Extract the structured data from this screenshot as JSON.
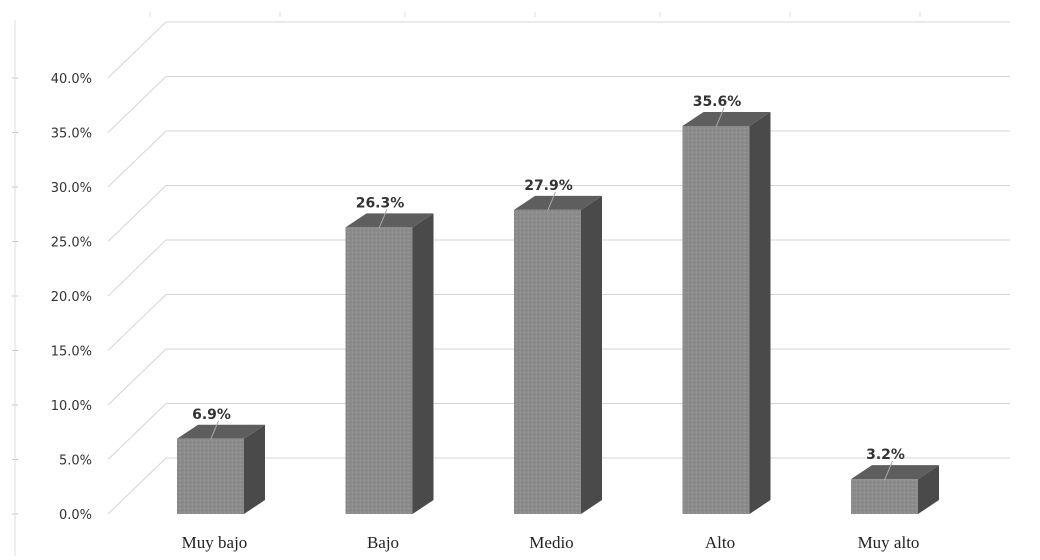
{
  "chart_data": {
    "type": "bar",
    "categories": [
      "Muy bajo",
      "Bajo",
      "Medio",
      "Alto",
      "Muy alto"
    ],
    "values": [
      6.9,
      26.3,
      27.9,
      35.6,
      3.2
    ],
    "data_labels": [
      "6.9%",
      "26.3%",
      "27.9%",
      "35.6%",
      "3.2%"
    ],
    "y_ticks": [
      "0.0%",
      "5.0%",
      "10.0%",
      "15.0%",
      "20.0%",
      "25.0%",
      "30.0%",
      "35.0%",
      "40.0%"
    ],
    "ylim": [
      0,
      40
    ],
    "grid": true,
    "three_d": true,
    "bar_colors": {
      "front": "#8c8c8c",
      "side": "#4a4a4a",
      "top": "#5e5e5e"
    }
  }
}
